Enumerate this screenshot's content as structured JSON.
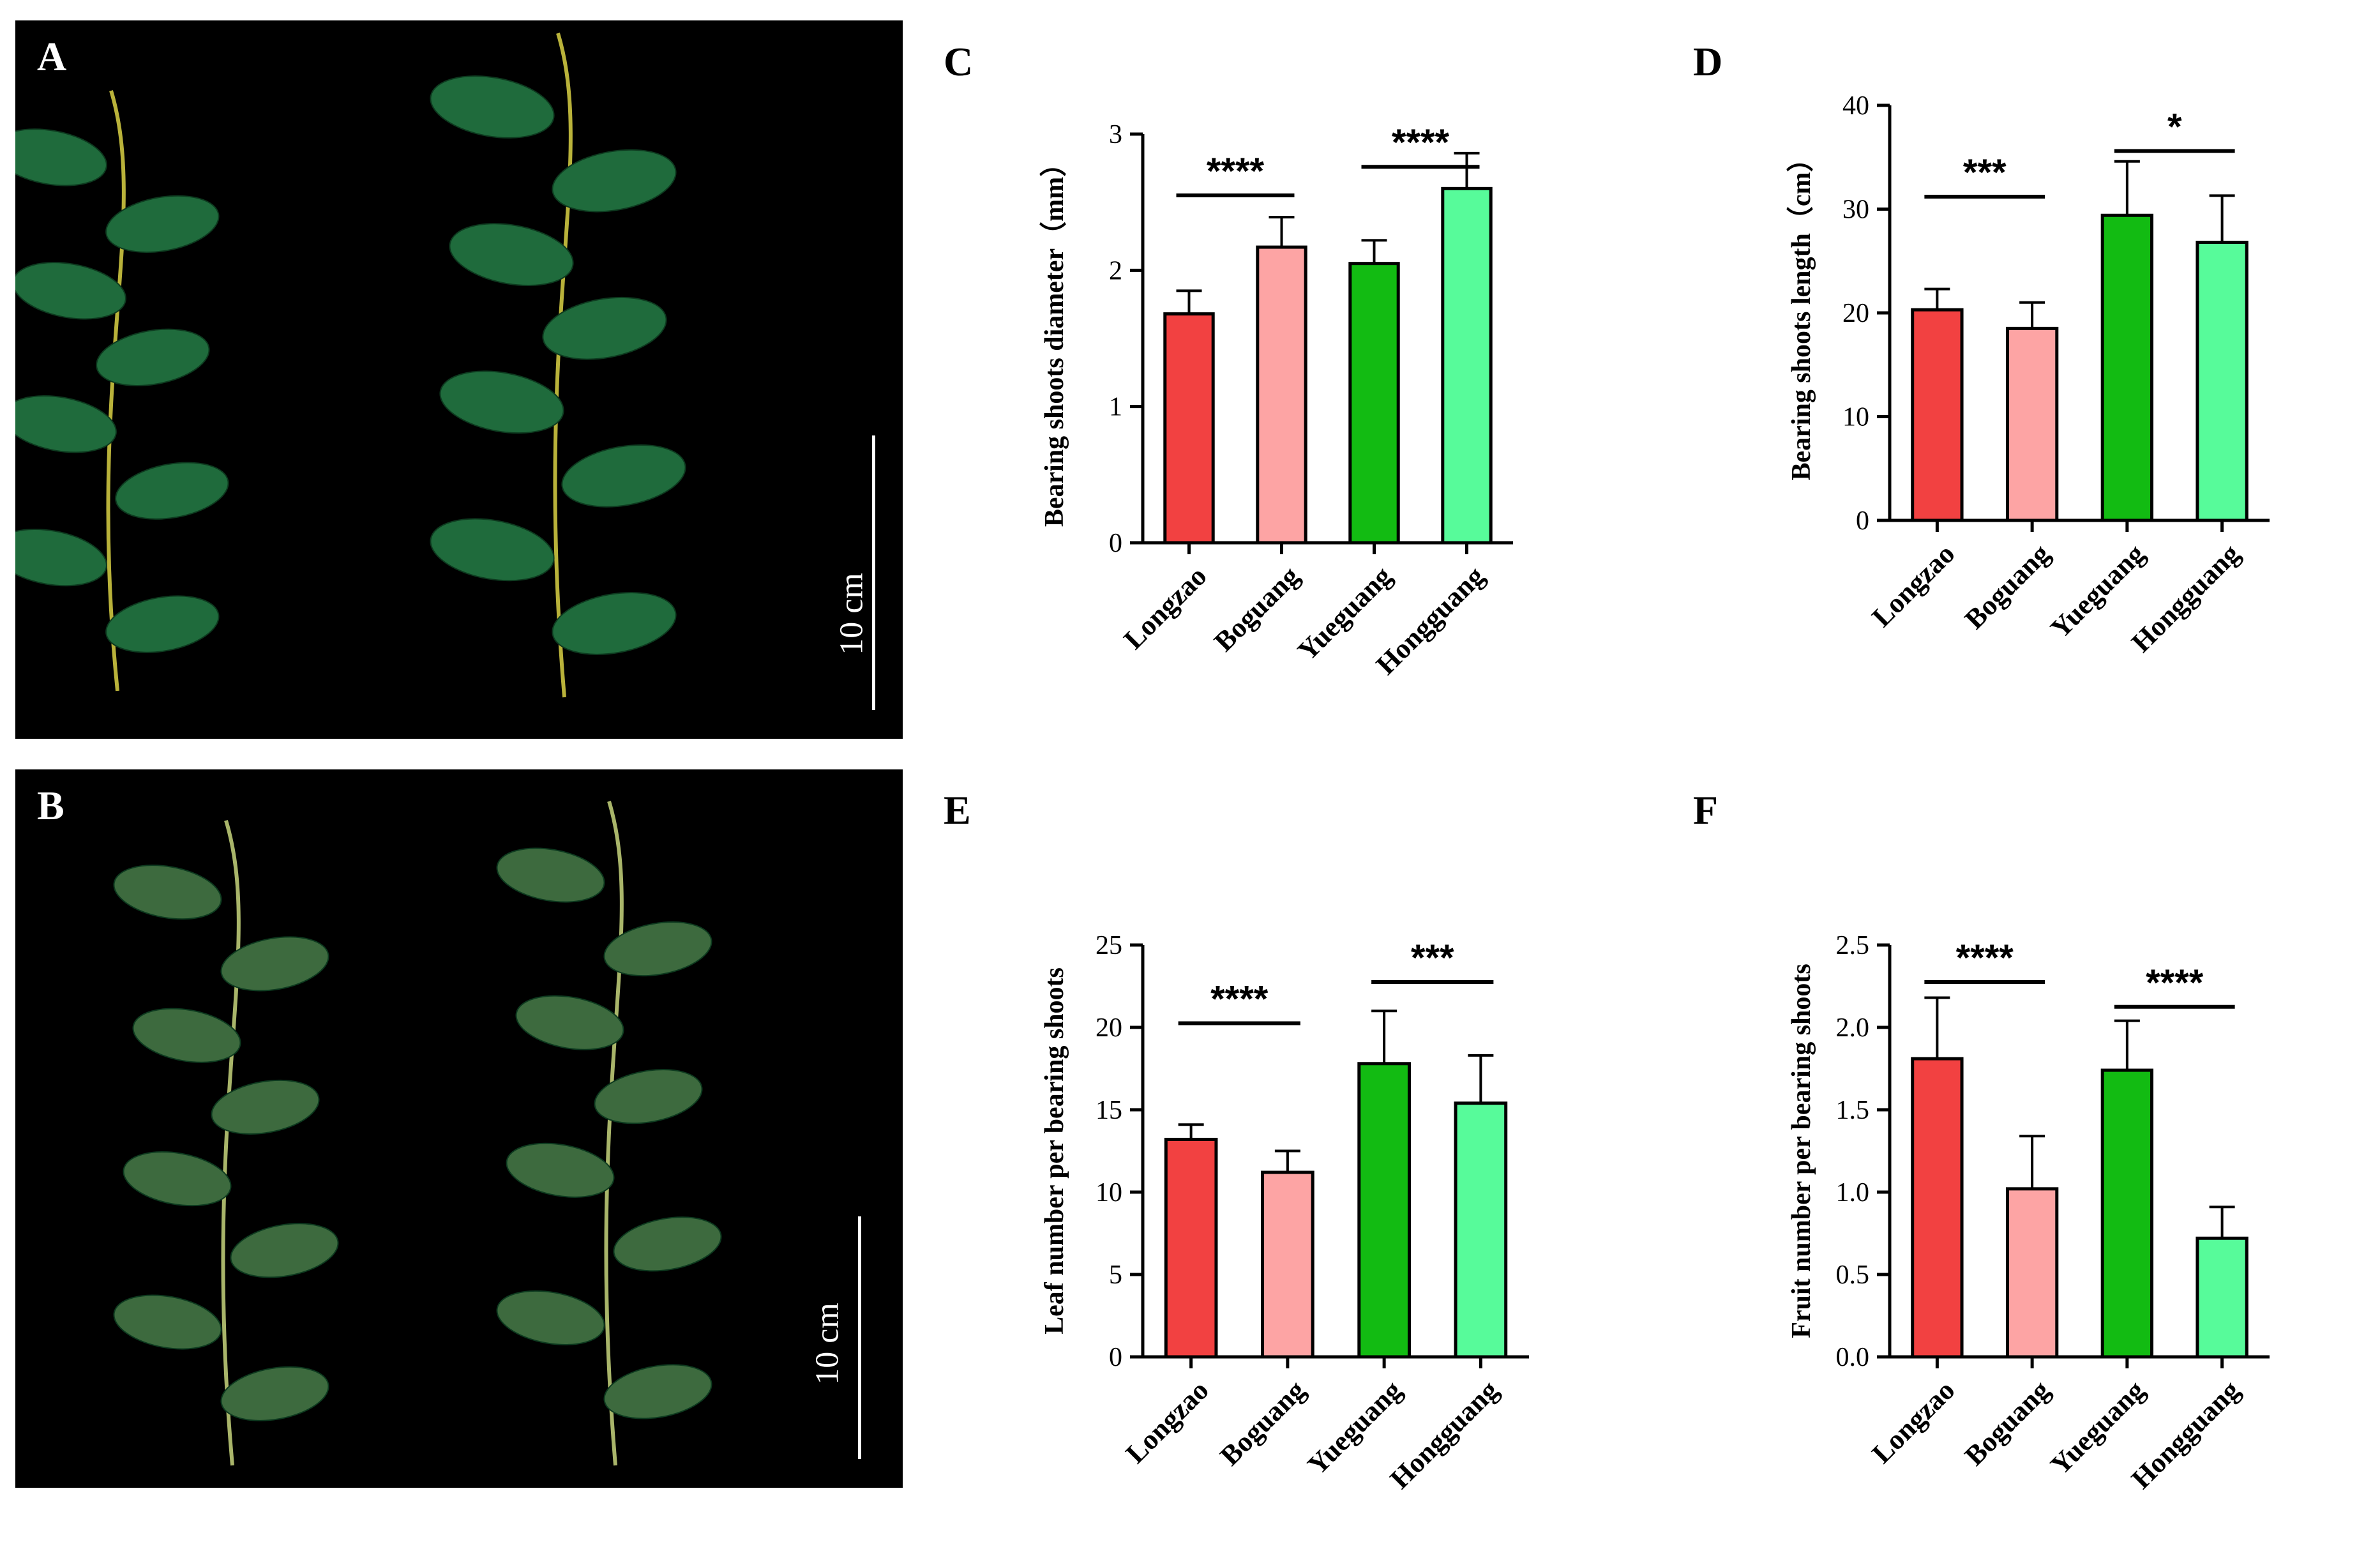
{
  "photos": [
    {
      "id": "A",
      "letter": "A",
      "scale_label": "10 cm",
      "leaf_color": "#1f6b3c",
      "stem_color": "#b9b23a"
    },
    {
      "id": "B",
      "letter": "B",
      "scale_label": "10 cm",
      "leaf_color": "#3d6a3e",
      "stem_color": "#a9b56a"
    }
  ],
  "colors": {
    "Longzao": "#f24141",
    "Boguang": "#fda4a4",
    "Yueguang": "#12bb12",
    "Hongguang": "#57fb9a"
  },
  "chart_data": [
    {
      "id": "C",
      "letter": "C",
      "type": "bar",
      "categories": [
        "Longzao",
        "Boguang",
        "Yueguang",
        "Hongguang"
      ],
      "values": [
        1.68,
        2.17,
        2.05,
        2.6
      ],
      "errors": [
        0.17,
        0.22,
        0.17,
        0.26
      ],
      "ylabel": "Bearing shoots diameter（mm）",
      "ylim": [
        0,
        3
      ],
      "yticks": [
        "0",
        "1",
        "2",
        "3"
      ],
      "ytick_values": [
        0,
        1,
        2,
        3
      ],
      "significance": [
        {
          "from": 0,
          "to": 1,
          "label": "****"
        },
        {
          "from": 2,
          "to": 3,
          "label": "****"
        }
      ]
    },
    {
      "id": "D",
      "letter": "D",
      "type": "bar",
      "categories": [
        "Longzao",
        "Boguang",
        "Yueguang",
        "Hongguang"
      ],
      "values": [
        20.3,
        18.5,
        29.4,
        26.8
      ],
      "errors": [
        2.0,
        2.5,
        5.2,
        4.5
      ],
      "ylabel": "Bearing shoots length（cm）",
      "ylim": [
        0,
        40
      ],
      "yticks": [
        "0",
        "10",
        "20",
        "30",
        "40"
      ],
      "ytick_values": [
        0,
        10,
        20,
        30,
        40
      ],
      "significance": [
        {
          "from": 0,
          "to": 1,
          "label": "***"
        },
        {
          "from": 2,
          "to": 3,
          "label": "*"
        }
      ]
    },
    {
      "id": "E",
      "letter": "E",
      "type": "bar",
      "categories": [
        "Longzao",
        "Boguang",
        "Yueguang",
        "Hongguang"
      ],
      "values": [
        13.2,
        11.2,
        17.8,
        15.4
      ],
      "errors": [
        0.9,
        1.3,
        3.2,
        2.9
      ],
      "ylabel": "Leaf number per bearing shoots",
      "ylim": [
        0,
        25
      ],
      "yticks": [
        "0",
        "5",
        "10",
        "15",
        "20",
        "25"
      ],
      "ytick_values": [
        0,
        5,
        10,
        15,
        20,
        25
      ],
      "significance": [
        {
          "from": 0,
          "to": 1,
          "label": "****"
        },
        {
          "from": 2,
          "to": 3,
          "label": "***"
        }
      ]
    },
    {
      "id": "F",
      "letter": "F",
      "type": "bar",
      "categories": [
        "Longzao",
        "Boguang",
        "Yueguang",
        "Hongguang"
      ],
      "values": [
        1.81,
        1.02,
        1.74,
        0.72
      ],
      "errors": [
        0.37,
        0.32,
        0.3,
        0.19
      ],
      "ylabel": "Fruit number per bearing shoots",
      "ylim": [
        0,
        2.5
      ],
      "yticks": [
        "0.0",
        "0.5",
        "1.0",
        "1.5",
        "2.0",
        "2.5"
      ],
      "ytick_values": [
        0,
        0.5,
        1,
        1.5,
        2,
        2.5
      ],
      "significance": [
        {
          "from": 0,
          "to": 1,
          "label": "****"
        },
        {
          "from": 2,
          "to": 3,
          "label": "****"
        }
      ]
    }
  ]
}
